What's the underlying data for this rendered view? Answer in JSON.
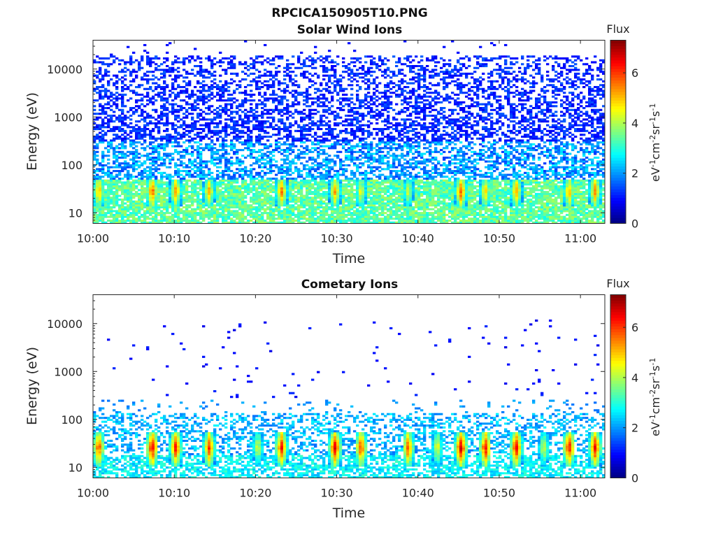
{
  "figure_title": "RPCICA150905T10.PNG",
  "colorbar_units": "eV-1cm-2sr-1s-1",
  "chart_data": [
    {
      "type": "heatmap",
      "title": "Solar Wind Ions",
      "xlabel": "Time",
      "ylabel": "Energy (eV)",
      "x_ticks": [
        "10:00",
        "10:10",
        "10:20",
        "10:30",
        "10:40",
        "10:50",
        "11:00"
      ],
      "x_range": [
        "10:00",
        "11:03"
      ],
      "y_scale": "log",
      "y_ticks": [
        "10",
        "100",
        "1000",
        "10000"
      ],
      "y_range": [
        6,
        40000
      ],
      "colorbar": {
        "label": "Flux",
        "ticks": [
          "0",
          "2",
          "4",
          "6"
        ],
        "range": [
          0,
          7.3
        ],
        "colormap": "jet"
      },
      "peak_times": [
        "10:00.7",
        "10:07.3",
        "10:10.2",
        "10:14.3",
        "10:23.2",
        "10:29.8",
        "10:33.0",
        "10:38.8",
        "10:45.3",
        "10:48.3",
        "10:52.1",
        "10:58.6",
        "11:01.8"
      ],
      "peak_energy_eV": [
        20,
        40
      ],
      "peak_flux": [
        5.5,
        6.0,
        5.6,
        5.3,
        5.8,
        5.4,
        4.8,
        4.5,
        6.0,
        5.2,
        5.6,
        5.5,
        5.6
      ],
      "low_energy_band_flux": 3.4,
      "background_flux_max": 1.6,
      "max_energy_eV": 20000
    },
    {
      "type": "heatmap",
      "title": "Cometary Ions",
      "xlabel": "Time",
      "ylabel": "Energy (eV)",
      "x_ticks": [
        "10:00",
        "10:10",
        "10:20",
        "10:30",
        "10:40",
        "10:50",
        "11:00"
      ],
      "x_range": [
        "10:00",
        "11:03"
      ],
      "y_scale": "log",
      "y_ticks": [
        "10",
        "100",
        "1000",
        "10000"
      ],
      "y_range": [
        6,
        40000
      ],
      "colorbar": {
        "label": "Flux",
        "ticks": [
          "0",
          "2",
          "4",
          "6"
        ],
        "range": [
          0,
          7.3
        ],
        "colormap": "jet"
      },
      "peak_times": [
        "10:00.7",
        "10:07.3",
        "10:10.2",
        "10:14.3",
        "10:20.3",
        "10:23.2",
        "10:29.8",
        "10:33.0",
        "10:38.8",
        "10:42.4",
        "10:45.3",
        "10:48.3",
        "10:52.1",
        "10:55.5",
        "10:58.6",
        "11:01.8"
      ],
      "peak_energy_eV": [
        15,
        45
      ],
      "peak_flux": [
        6.3,
        6.9,
        6.6,
        6.2,
        4.6,
        6.6,
        6.9,
        6.4,
        6.2,
        4.8,
        7.0,
        6.8,
        6.8,
        4.6,
        6.8,
        6.7
      ],
      "low_energy_band_flux": 2.6,
      "sparse_band_flux": 2.2,
      "background_flux_max": 1.2,
      "max_energy_eV": 12000
    }
  ]
}
